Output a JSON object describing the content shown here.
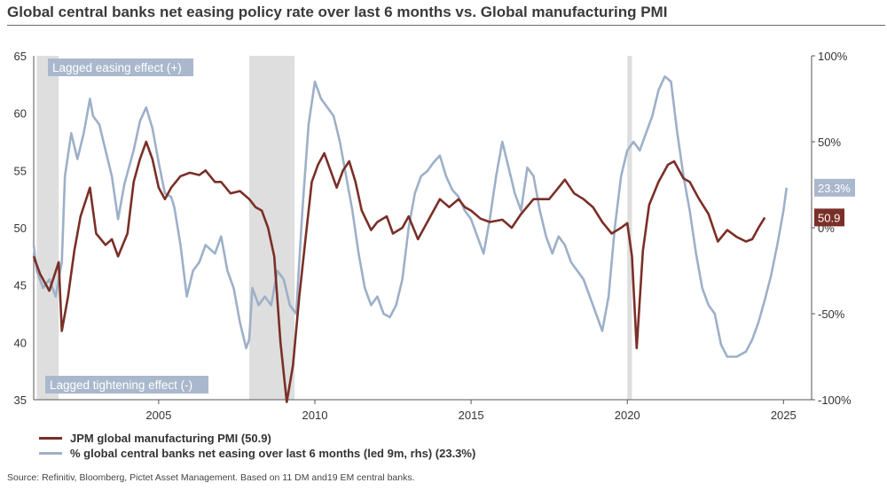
{
  "title": "Global central banks net easing policy rate over last 6 months vs. Global manufacturing PMI",
  "source": "Source: Refinitiv, Bloomberg, Pictet Asset Management. Based on 11 DM and19 EM central banks.",
  "colors": {
    "pmi": "#7a2f27",
    "easing": "#9db0c8",
    "shade": "#dedede",
    "axis": "#555555",
    "box": "#a9b8cc"
  },
  "chart_data": {
    "type": "line",
    "title": "Global central banks net easing policy rate over last 6 months vs. Global manufacturing PMI",
    "xlim": [
      2001.0,
      2025.9
    ],
    "x_ticks": [
      2005,
      2010,
      2015,
      2020,
      2025
    ],
    "ylim_left": [
      35,
      65
    ],
    "left_ticks": [
      35,
      40,
      45,
      50,
      55,
      60,
      65
    ],
    "ylim_right": [
      -100,
      100
    ],
    "right_ticks": [
      {
        "value": -100,
        "label": "-100%"
      },
      {
        "value": -50,
        "label": "-50%"
      },
      {
        "value": 0,
        "label": "0%"
      },
      {
        "value": 50,
        "label": "50%"
      },
      {
        "value": 100,
        "label": "100%"
      }
    ],
    "shaded_periods": [
      [
        2001.1,
        2001.8
      ],
      [
        2007.9,
        2009.35
      ],
      [
        2020.0,
        2020.15
      ]
    ],
    "annotations": {
      "top_left": "Lagged easing effect (+)",
      "bottom_left": "Lagged tightening effect (-)"
    },
    "end_labels": {
      "pmi": "50.9",
      "easing": "23.3%"
    },
    "legend_position": "bottom-left",
    "series": [
      {
        "name": "JPM global manufacturing PMI (50.9)",
        "axis": "left",
        "points": [
          [
            2001.0,
            47.5
          ],
          [
            2001.2,
            46.0
          ],
          [
            2001.5,
            44.5
          ],
          [
            2001.8,
            47.0
          ],
          [
            2001.9,
            41.0
          ],
          [
            2002.1,
            44.0
          ],
          [
            2002.3,
            48.0
          ],
          [
            2002.5,
            51.0
          ],
          [
            2002.8,
            53.5
          ],
          [
            2003.0,
            49.5
          ],
          [
            2003.3,
            48.5
          ],
          [
            2003.5,
            49.0
          ],
          [
            2003.7,
            47.5
          ],
          [
            2004.0,
            49.5
          ],
          [
            2004.2,
            54.0
          ],
          [
            2004.4,
            56.0
          ],
          [
            2004.6,
            57.5
          ],
          [
            2004.8,
            56.0
          ],
          [
            2005.0,
            53.5
          ],
          [
            2005.2,
            52.5
          ],
          [
            2005.4,
            53.5
          ],
          [
            2005.7,
            54.5
          ],
          [
            2006.0,
            54.8
          ],
          [
            2006.3,
            54.6
          ],
          [
            2006.5,
            55.0
          ],
          [
            2006.8,
            54.0
          ],
          [
            2007.0,
            54.0
          ],
          [
            2007.3,
            53.0
          ],
          [
            2007.6,
            53.2
          ],
          [
            2007.9,
            52.5
          ],
          [
            2008.1,
            51.8
          ],
          [
            2008.3,
            51.5
          ],
          [
            2008.5,
            50.0
          ],
          [
            2008.7,
            47.5
          ],
          [
            2008.9,
            40.0
          ],
          [
            2009.1,
            34.8
          ],
          [
            2009.3,
            38.0
          ],
          [
            2009.5,
            44.0
          ],
          [
            2009.7,
            49.0
          ],
          [
            2009.9,
            54.0
          ],
          [
            2010.1,
            55.5
          ],
          [
            2010.3,
            56.5
          ],
          [
            2010.5,
            55.0
          ],
          [
            2010.7,
            53.5
          ],
          [
            2010.9,
            55.0
          ],
          [
            2011.1,
            55.8
          ],
          [
            2011.3,
            54.0
          ],
          [
            2011.5,
            51.5
          ],
          [
            2011.8,
            49.8
          ],
          [
            2012.0,
            50.5
          ],
          [
            2012.3,
            51.0
          ],
          [
            2012.5,
            49.5
          ],
          [
            2012.8,
            50.0
          ],
          [
            2013.0,
            51.0
          ],
          [
            2013.3,
            49.0
          ],
          [
            2013.6,
            50.5
          ],
          [
            2014.0,
            52.5
          ],
          [
            2014.3,
            51.8
          ],
          [
            2014.6,
            52.5
          ],
          [
            2014.8,
            51.8
          ],
          [
            2015.0,
            51.5
          ],
          [
            2015.3,
            50.8
          ],
          [
            2015.6,
            50.5
          ],
          [
            2016.0,
            50.7
          ],
          [
            2016.3,
            50.0
          ],
          [
            2016.6,
            51.2
          ],
          [
            2017.0,
            52.5
          ],
          [
            2017.5,
            52.5
          ],
          [
            2017.8,
            53.5
          ],
          [
            2018.0,
            54.2
          ],
          [
            2018.3,
            53.0
          ],
          [
            2018.6,
            52.5
          ],
          [
            2018.9,
            51.8
          ],
          [
            2019.2,
            50.5
          ],
          [
            2019.5,
            49.5
          ],
          [
            2019.8,
            50.0
          ],
          [
            2020.0,
            50.4
          ],
          [
            2020.15,
            47.5
          ],
          [
            2020.3,
            39.5
          ],
          [
            2020.5,
            48.0
          ],
          [
            2020.7,
            52.0
          ],
          [
            2021.0,
            54.0
          ],
          [
            2021.3,
            55.5
          ],
          [
            2021.5,
            55.8
          ],
          [
            2021.8,
            54.3
          ],
          [
            2022.0,
            54.0
          ],
          [
            2022.3,
            52.5
          ],
          [
            2022.6,
            51.2
          ],
          [
            2022.9,
            48.8
          ],
          [
            2023.2,
            49.8
          ],
          [
            2023.5,
            49.2
          ],
          [
            2023.8,
            48.8
          ],
          [
            2024.0,
            49.0
          ],
          [
            2024.2,
            50.0
          ],
          [
            2024.4,
            50.9
          ]
        ]
      },
      {
        "name": "% global central banks net easing over last 6 months (led 9m, rhs) (23.3%)",
        "axis": "right",
        "points": [
          [
            2001.0,
            -10
          ],
          [
            2001.1,
            -25
          ],
          [
            2001.3,
            -35
          ],
          [
            2001.5,
            -30
          ],
          [
            2001.7,
            -40
          ],
          [
            2001.9,
            -20
          ],
          [
            2002.0,
            30
          ],
          [
            2002.2,
            55
          ],
          [
            2002.4,
            40
          ],
          [
            2002.6,
            55
          ],
          [
            2002.8,
            75
          ],
          [
            2002.9,
            65
          ],
          [
            2003.1,
            60
          ],
          [
            2003.3,
            45
          ],
          [
            2003.5,
            30
          ],
          [
            2003.7,
            5
          ],
          [
            2003.9,
            25
          ],
          [
            2004.0,
            32
          ],
          [
            2004.2,
            45
          ],
          [
            2004.4,
            62
          ],
          [
            2004.6,
            70
          ],
          [
            2004.8,
            58
          ],
          [
            2005.0,
            38
          ],
          [
            2005.2,
            20
          ],
          [
            2005.4,
            18
          ],
          [
            2005.5,
            12
          ],
          [
            2005.7,
            -10
          ],
          [
            2005.9,
            -40
          ],
          [
            2006.1,
            -25
          ],
          [
            2006.3,
            -20
          ],
          [
            2006.5,
            -10
          ],
          [
            2006.8,
            -15
          ],
          [
            2007.0,
            -5
          ],
          [
            2007.2,
            -25
          ],
          [
            2007.4,
            -35
          ],
          [
            2007.6,
            -55
          ],
          [
            2007.8,
            -70
          ],
          [
            2007.9,
            -65
          ],
          [
            2008.0,
            -35
          ],
          [
            2008.2,
            -45
          ],
          [
            2008.4,
            -40
          ],
          [
            2008.6,
            -45
          ],
          [
            2008.8,
            -25
          ],
          [
            2009.0,
            -30
          ],
          [
            2009.2,
            -45
          ],
          [
            2009.4,
            -50
          ],
          [
            2009.6,
            10
          ],
          [
            2009.8,
            60
          ],
          [
            2010.0,
            85
          ],
          [
            2010.2,
            75
          ],
          [
            2010.4,
            70
          ],
          [
            2010.6,
            65
          ],
          [
            2010.8,
            50
          ],
          [
            2011.0,
            30
          ],
          [
            2011.2,
            10
          ],
          [
            2011.4,
            -15
          ],
          [
            2011.6,
            -35
          ],
          [
            2011.8,
            -45
          ],
          [
            2012.0,
            -40
          ],
          [
            2012.2,
            -50
          ],
          [
            2012.4,
            -52
          ],
          [
            2012.6,
            -45
          ],
          [
            2012.8,
            -30
          ],
          [
            2013.0,
            0
          ],
          [
            2013.2,
            20
          ],
          [
            2013.4,
            30
          ],
          [
            2013.6,
            33
          ],
          [
            2013.8,
            38
          ],
          [
            2014.0,
            42
          ],
          [
            2014.2,
            30
          ],
          [
            2014.4,
            22
          ],
          [
            2014.6,
            18
          ],
          [
            2014.8,
            10
          ],
          [
            2015.0,
            5
          ],
          [
            2015.2,
            -5
          ],
          [
            2015.4,
            -15
          ],
          [
            2015.6,
            5
          ],
          [
            2015.8,
            30
          ],
          [
            2016.0,
            50
          ],
          [
            2016.2,
            35
          ],
          [
            2016.4,
            20
          ],
          [
            2016.6,
            10
          ],
          [
            2016.8,
            35
          ],
          [
            2017.0,
            30
          ],
          [
            2017.2,
            10
          ],
          [
            2017.4,
            -5
          ],
          [
            2017.6,
            -15
          ],
          [
            2017.8,
            -5
          ],
          [
            2018.0,
            -10
          ],
          [
            2018.2,
            -20
          ],
          [
            2018.4,
            -25
          ],
          [
            2018.6,
            -30
          ],
          [
            2018.8,
            -40
          ],
          [
            2019.0,
            -50
          ],
          [
            2019.2,
            -60
          ],
          [
            2019.4,
            -40
          ],
          [
            2019.6,
            0
          ],
          [
            2019.8,
            30
          ],
          [
            2020.0,
            45
          ],
          [
            2020.2,
            50
          ],
          [
            2020.4,
            45
          ],
          [
            2020.6,
            55
          ],
          [
            2020.8,
            65
          ],
          [
            2021.0,
            80
          ],
          [
            2021.2,
            88
          ],
          [
            2021.4,
            85
          ],
          [
            2021.6,
            55
          ],
          [
            2021.8,
            30
          ],
          [
            2022.0,
            10
          ],
          [
            2022.2,
            -15
          ],
          [
            2022.4,
            -35
          ],
          [
            2022.6,
            -45
          ],
          [
            2022.8,
            -50
          ],
          [
            2023.0,
            -68
          ],
          [
            2023.2,
            -75
          ],
          [
            2023.5,
            -75
          ],
          [
            2023.8,
            -72
          ],
          [
            2024.0,
            -65
          ],
          [
            2024.2,
            -55
          ],
          [
            2024.4,
            -42
          ],
          [
            2024.6,
            -28
          ],
          [
            2024.8,
            -10
          ],
          [
            2025.0,
            10
          ],
          [
            2025.1,
            23.3
          ]
        ]
      }
    ]
  }
}
